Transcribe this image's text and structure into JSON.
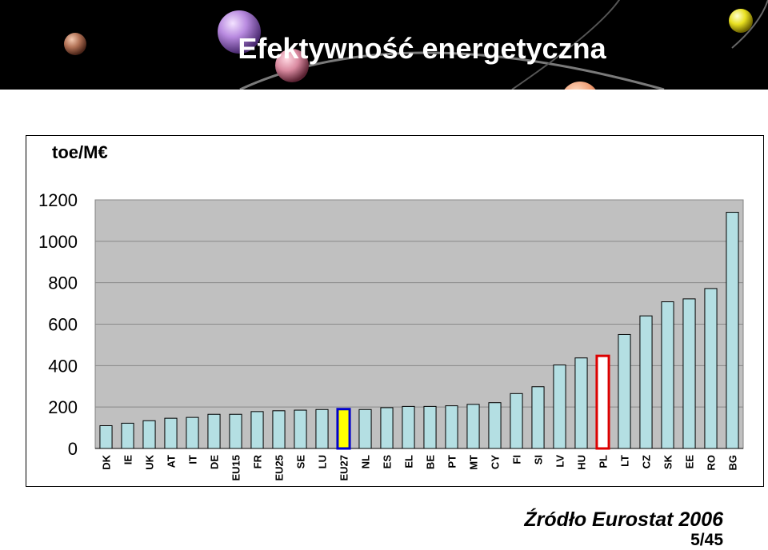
{
  "slide": {
    "title": "Efektywność energetyczna",
    "source": "Źródło Eurostat 2006",
    "page": "5/45"
  },
  "colors": {
    "header_bg": "#000000",
    "plot_bg": "#c0c0c0",
    "bar_fill": "#b4dfe3",
    "highlight_eu27_fill": "#ffff00",
    "highlight_eu27_border": "#0000cc",
    "highlight_pl_fill": "#ffffff",
    "highlight_pl_border": "#dd0000"
  },
  "chart_data": {
    "type": "bar",
    "unit_label": "toe/M€",
    "categories": [
      "DK",
      "IE",
      "UK",
      "AT",
      "IT",
      "DE",
      "EU15",
      "FR",
      "EU25",
      "SE",
      "LU",
      "EU27",
      "NL",
      "ES",
      "EL",
      "BE",
      "PT",
      "MT",
      "CY",
      "FI",
      "SI",
      "LV",
      "HU",
      "PL",
      "LT",
      "CZ",
      "SK",
      "EE",
      "RO",
      "BG"
    ],
    "values": [
      110,
      122,
      134,
      146,
      150,
      165,
      165,
      178,
      182,
      185,
      188,
      190,
      188,
      197,
      203,
      203,
      206,
      213,
      221,
      265,
      298,
      403,
      437,
      447,
      550,
      640,
      708,
      722,
      772,
      1140
    ],
    "highlighted": {
      "EU27": "yellow-blue",
      "PL": "white-red"
    },
    "ylim": [
      0,
      1200
    ],
    "yticks": [
      0,
      200,
      400,
      600,
      800,
      1000,
      1200
    ],
    "grid": true,
    "legend": "none"
  }
}
